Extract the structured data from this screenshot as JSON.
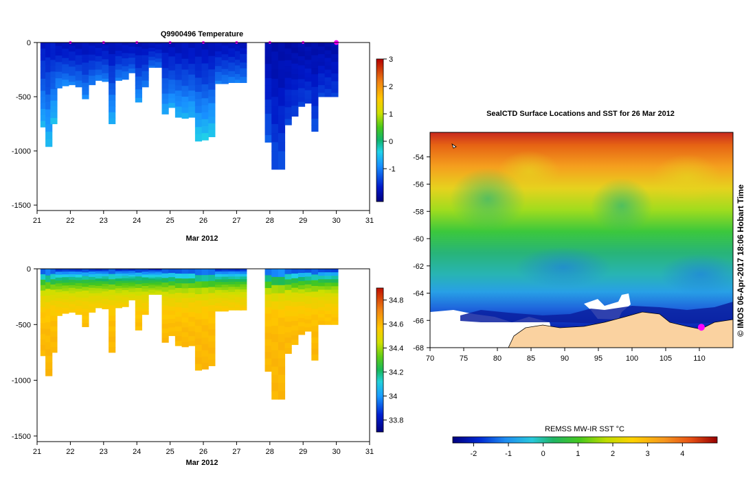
{
  "chart_data": [
    {
      "type": "heatmap",
      "title": "Q9900496  Temperature",
      "xlabel": "Mar 2012",
      "ylabel": "",
      "xlim": [
        21,
        31
      ],
      "ylim": [
        -1550,
        0
      ],
      "x_ticks": [
        "21",
        "22",
        "23",
        "24",
        "25",
        "26",
        "27",
        "28",
        "29",
        "30",
        "31"
      ],
      "y_ticks": [
        "0",
        "-500",
        "-1000",
        "-1500"
      ],
      "colorbar": {
        "min": -2.2,
        "max": 3,
        "ticks": [
          "3",
          "2",
          "1",
          "0",
          "-1"
        ]
      },
      "profiles": [
        {
          "day": 21.2,
          "depth": -780,
          "surface": -1.7,
          "deep": -0.6
        },
        {
          "day": 21.35,
          "depth": -960,
          "surface": -1.7,
          "deep": -0.5
        },
        {
          "day": 21.5,
          "depth": -750,
          "surface": -1.7,
          "deep": -0.5
        },
        {
          "day": 21.65,
          "depth": -420,
          "surface": -1.8,
          "deep": -0.9
        },
        {
          "day": 21.85,
          "depth": -400,
          "surface": -1.8,
          "deep": -0.9
        },
        {
          "day": 22.05,
          "depth": -390,
          "surface": -1.8,
          "deep": -1.0
        },
        {
          "day": 22.25,
          "depth": -410,
          "surface": -1.8,
          "deep": -1.0
        },
        {
          "day": 22.45,
          "depth": -520,
          "surface": -1.8,
          "deep": -0.9
        },
        {
          "day": 22.65,
          "depth": -390,
          "surface": -1.8,
          "deep": -1.0
        },
        {
          "day": 22.85,
          "depth": -350,
          "surface": -1.8,
          "deep": -1.0
        },
        {
          "day": 23.05,
          "depth": -360,
          "surface": -1.8,
          "deep": -1.0
        },
        {
          "day": 23.25,
          "depth": -750,
          "surface": -1.8,
          "deep": -0.6
        },
        {
          "day": 23.45,
          "depth": -350,
          "surface": -1.8,
          "deep": -1.0
        },
        {
          "day": 23.65,
          "depth": -340,
          "surface": -1.8,
          "deep": -1.0
        },
        {
          "day": 23.85,
          "depth": -280,
          "surface": -1.8,
          "deep": -1.1
        },
        {
          "day": 24.05,
          "depth": -550,
          "surface": -1.8,
          "deep": -0.8
        },
        {
          "day": 24.25,
          "depth": -410,
          "surface": -1.8,
          "deep": -1.0
        },
        {
          "day": 24.45,
          "depth": -230,
          "surface": -1.8,
          "deep": -1.1
        },
        {
          "day": 24.65,
          "depth": -230,
          "surface": -1.8,
          "deep": -1.1
        },
        {
          "day": 24.85,
          "depth": -660,
          "surface": -1.8,
          "deep": -0.7
        },
        {
          "day": 25.05,
          "depth": -600,
          "surface": -1.8,
          "deep": -0.7
        },
        {
          "day": 25.25,
          "depth": -690,
          "surface": -1.8,
          "deep": -0.6
        },
        {
          "day": 25.45,
          "depth": -700,
          "surface": -1.8,
          "deep": -0.6
        },
        {
          "day": 25.65,
          "depth": -690,
          "surface": -1.8,
          "deep": -0.6
        },
        {
          "day": 25.85,
          "depth": -910,
          "surface": -1.8,
          "deep": -0.4
        },
        {
          "day": 26.05,
          "depth": -900,
          "surface": -1.8,
          "deep": -0.4
        },
        {
          "day": 26.25,
          "depth": -870,
          "surface": -1.8,
          "deep": -0.4
        },
        {
          "day": 26.45,
          "depth": -380,
          "surface": -1.8,
          "deep": -1.0
        },
        {
          "day": 26.65,
          "depth": -380,
          "surface": -1.8,
          "deep": -1.0
        },
        {
          "day": 26.85,
          "depth": -370,
          "surface": -1.8,
          "deep": -1.0
        },
        {
          "day": 27.05,
          "depth": -370,
          "surface": -1.8,
          "deep": -1.0
        },
        {
          "day": 27.2,
          "depth": -370,
          "surface": -1.8,
          "deep": -1.0
        },
        {
          "day": 27.95,
          "depth": -920,
          "surface": -1.9,
          "deep": -1.2
        },
        {
          "day": 28.15,
          "depth": -1170,
          "surface": -1.9,
          "deep": -1.3
        },
        {
          "day": 28.35,
          "depth": -1170,
          "surface": -1.9,
          "deep": -1.3
        },
        {
          "day": 28.55,
          "depth": -760,
          "surface": -1.9,
          "deep": -1.4
        },
        {
          "day": 28.75,
          "depth": -680,
          "surface": -1.9,
          "deep": -1.4
        },
        {
          "day": 28.95,
          "depth": -590,
          "surface": -1.9,
          "deep": -1.4
        },
        {
          "day": 29.15,
          "depth": -560,
          "surface": -1.9,
          "deep": -1.4
        },
        {
          "day": 29.35,
          "depth": -820,
          "surface": -1.9,
          "deep": -1.3
        },
        {
          "day": 29.55,
          "depth": -500,
          "surface": -1.9,
          "deep": -1.4
        },
        {
          "day": 29.75,
          "depth": -500,
          "surface": -1.9,
          "deep": -1.4
        },
        {
          "day": 29.95,
          "depth": -500,
          "surface": -1.9,
          "deep": -1.4
        }
      ],
      "surface_markers": [
        22,
        23,
        24,
        25,
        26,
        27,
        28,
        29,
        30
      ],
      "current_marker": 30
    },
    {
      "type": "heatmap",
      "title": "",
      "xlabel": "Mar 2012",
      "ylabel": "",
      "xlim": [
        21,
        31
      ],
      "ylim": [
        -1550,
        0
      ],
      "x_ticks": [
        "21",
        "22",
        "23",
        "24",
        "25",
        "26",
        "27",
        "28",
        "29",
        "30",
        "31"
      ],
      "y_ticks": [
        "0",
        "-500",
        "-1000",
        "-1500"
      ],
      "colorbar": {
        "min": 33.7,
        "max": 34.9,
        "ticks": [
          "34.8",
          "34.6",
          "34.4",
          "34.2",
          "34",
          "33.8"
        ]
      },
      "surface_value": 33.8,
      "deep_value": 34.6
    },
    {
      "type": "heatmap",
      "title": "SealCTD Surface Locations and SST for 26 Mar 2012",
      "xlabel": "",
      "ylabel": "",
      "xlim": [
        70,
        115
      ],
      "ylim": [
        -68,
        -52.2
      ],
      "x_ticks": [
        "70",
        "75",
        "80",
        "85",
        "90",
        "95",
        "100",
        "105",
        "110"
      ],
      "y_ticks": [
        "-54",
        "-56",
        "-58",
        "-60",
        "-62",
        "-64",
        "-66",
        "-68"
      ],
      "colorbar": {
        "label": "REMSS MW-IR SST °C",
        "min": -2.6,
        "max": 5.0,
        "ticks": [
          "-2",
          "-1",
          "0",
          "1",
          "2",
          "3",
          "4"
        ]
      },
      "seal_location": [
        110.3,
        -66.5
      ],
      "side_note": "© IMOS 06-Apr-2017 18:06 Hobart Time"
    }
  ]
}
